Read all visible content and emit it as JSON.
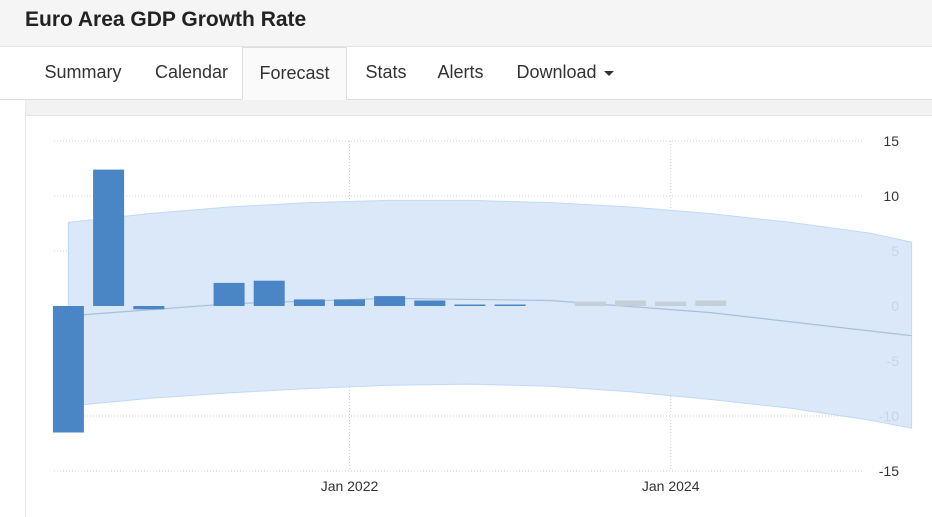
{
  "page": {
    "title": "Euro Area GDP Growth Rate"
  },
  "tabs": [
    {
      "label": "Summary",
      "active": false
    },
    {
      "label": "Calendar",
      "active": false
    },
    {
      "label": "Forecast",
      "active": true
    },
    {
      "label": "Stats",
      "active": false
    },
    {
      "label": "Alerts",
      "active": false
    },
    {
      "label": "Download",
      "active": false,
      "dropdown": true
    }
  ],
  "chart_data": {
    "type": "bar",
    "title": "",
    "xlabel": "",
    "ylabel": "",
    "ylim": [
      -15,
      15
    ],
    "y_ticks": [
      15,
      10,
      5,
      0,
      -5,
      -10,
      -15
    ],
    "y_tick_labels": [
      "15",
      "10",
      "5",
      "0",
      "-5",
      "-10",
      "-15"
    ],
    "y_axis_side": "right",
    "x_tick_labels": [
      "Jan 2022",
      "Jan 2024"
    ],
    "x_tick_dates": [
      "2022-01",
      "2024-01"
    ],
    "grid": true,
    "series": [
      {
        "kind": "actual",
        "color": "#4a86c5",
        "points": [
          {
            "date": "2020-Q2",
            "value": -11.5
          },
          {
            "date": "2020-Q3",
            "value": 12.4
          },
          {
            "date": "2020-Q4",
            "value": -0.3
          },
          {
            "date": "2021-Q2",
            "value": 2.1
          },
          {
            "date": "2021-Q3",
            "value": 2.3
          },
          {
            "date": "2021-Q4",
            "value": 0.6
          },
          {
            "date": "2022-Q1",
            "value": 0.6
          },
          {
            "date": "2022-Q2",
            "value": 0.9
          },
          {
            "date": "2022-Q3",
            "value": 0.5
          },
          {
            "date": "2022-Q4",
            "value": 0.0
          },
          {
            "date": "2023-Q1",
            "value": 0.1
          }
        ]
      },
      {
        "kind": "forecast",
        "color": "#c5cfd9",
        "points": [
          {
            "date": "2023-Q3",
            "value": 0.4
          },
          {
            "date": "2023-Q4",
            "value": 0.5
          },
          {
            "date": "2024-Q1",
            "value": 0.4
          },
          {
            "date": "2024-Q2",
            "value": 0.5
          }
        ]
      }
    ],
    "forecast_band": {
      "color": "#d6e6fa",
      "dates": [
        "2020-Q2",
        "2020-Q4",
        "2021-Q2",
        "2021-Q4",
        "2022-Q2",
        "2022-Q4",
        "2023-Q2",
        "2023-Q4",
        "2024-Q2",
        "2024-Q4",
        "2025-Q2",
        "2025-Q3"
      ],
      "upper": [
        7.6,
        8.4,
        9.0,
        9.4,
        9.6,
        9.6,
        9.4,
        9.0,
        8.4,
        7.6,
        6.6,
        5.8
      ],
      "lower": [
        -9.1,
        -8.4,
        -7.9,
        -7.5,
        -7.2,
        -7.1,
        -7.3,
        -7.8,
        -8.5,
        -9.3,
        -10.4,
        -11.1
      ]
    },
    "trend_line": {
      "color": "#aabfd8",
      "dates": [
        "2020-Q2",
        "2021-Q2",
        "2022-Q2",
        "2023-Q2",
        "2024-Q2",
        "2025-Q3"
      ],
      "values": [
        -0.9,
        0.2,
        0.7,
        0.5,
        -0.6,
        -2.7
      ]
    }
  }
}
